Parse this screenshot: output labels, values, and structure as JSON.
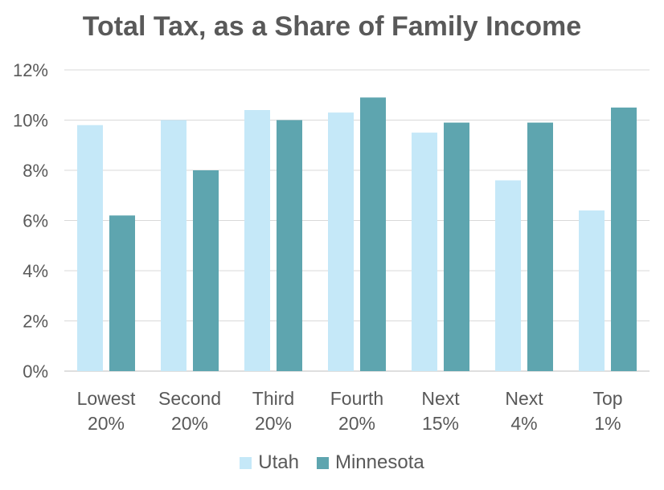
{
  "chart_data": {
    "type": "bar",
    "title": "Total Tax, as a Share of Family Income",
    "categories": [
      [
        "Lowest",
        "20%"
      ],
      [
        "Second",
        "20%"
      ],
      [
        "Third",
        "20%"
      ],
      [
        "Fourth",
        "20%"
      ],
      [
        "Next",
        "15%"
      ],
      [
        "Next",
        "4%"
      ],
      [
        "Top",
        "1%"
      ]
    ],
    "series": [
      {
        "name": "Utah",
        "color": "#C5E8F8",
        "values": [
          9.8,
          10.0,
          10.4,
          10.3,
          9.5,
          7.6,
          6.4
        ]
      },
      {
        "name": "Minnesota",
        "color": "#5EA5AF",
        "values": [
          6.2,
          8.0,
          10.0,
          10.9,
          9.9,
          9.9,
          10.5
        ]
      }
    ],
    "yticks": [
      "0%",
      "2%",
      "4%",
      "6%",
      "8%",
      "10%",
      "12%"
    ],
    "ylim": [
      0,
      12
    ],
    "grid": true,
    "legend_position": "bottom"
  }
}
